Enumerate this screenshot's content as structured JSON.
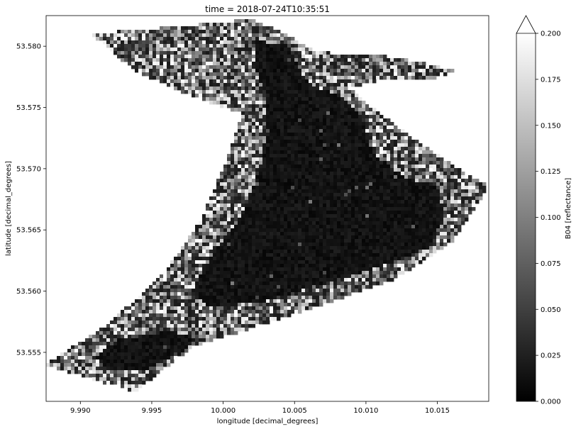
{
  "chart_data": {
    "type": "heatmap",
    "title": "time = 2018-07-24T10:35:51",
    "xlabel": "longitude [decimal_degrees]",
    "ylabel": "latitude [decimal_degrees]",
    "xlim": [
      9.9876,
      10.0186
    ],
    "ylim": [
      53.551,
      53.5825
    ],
    "x_ticks": [
      9.99,
      9.995,
      10.0,
      10.005,
      10.01,
      10.015
    ],
    "x_tick_labels": [
      "9.990",
      "9.995",
      "10.000",
      "10.005",
      "10.010",
      "10.015"
    ],
    "y_ticks": [
      53.555,
      53.56,
      53.565,
      53.57,
      53.575,
      53.58
    ],
    "y_tick_labels": [
      "53.555",
      "53.560",
      "53.565",
      "53.570",
      "53.575",
      "53.580"
    ],
    "colorbar": {
      "label": "B04 [reflectance]",
      "range": [
        0.0,
        0.2
      ],
      "extend": "max",
      "colormap": "gray",
      "ticks": [
        0.0,
        0.025,
        0.05,
        0.075,
        0.1,
        0.125,
        0.15,
        0.175,
        0.2
      ],
      "tick_labels": [
        "0.000",
        "0.025",
        "0.050",
        "0.075",
        "0.100",
        "0.125",
        "0.150",
        "0.175",
        "0.200"
      ]
    },
    "region_outline_lonlat": [
      [
        9.9908,
        53.581
      ],
      [
        9.9975,
        53.5817
      ],
      [
        10.0021,
        53.5822
      ],
      [
        10.0046,
        53.5808
      ],
      [
        10.0066,
        53.5795
      ],
      [
        10.0105,
        53.5793
      ],
      [
        10.0126,
        53.579
      ],
      [
        10.0163,
        53.578
      ],
      [
        10.0147,
        53.5773
      ],
      [
        10.0128,
        53.5772
      ],
      [
        10.0108,
        53.5772
      ],
      [
        10.0088,
        53.5766
      ],
      [
        10.0122,
        53.5734
      ],
      [
        10.0164,
        53.57
      ],
      [
        10.0186,
        53.5686
      ],
      [
        10.016,
        53.564
      ],
      [
        10.012,
        53.561
      ],
      [
        10.0072,
        53.559
      ],
      [
        10.0012,
        53.5567
      ],
      [
        9.9979,
        53.5555
      ],
      [
        9.9938,
        53.5518
      ],
      [
        9.9875,
        53.554
      ],
      [
        9.9921,
        53.5574
      ],
      [
        9.9962,
        53.562
      ],
      [
        9.9985,
        53.566
      ],
      [
        10.0002,
        53.5706
      ],
      [
        10.0013,
        53.5745
      ],
      [
        9.9977,
        53.576
      ],
      [
        9.9938,
        53.578
      ]
    ],
    "water_outline_lonlat": [
      [
        10.0023,
        53.5805
      ],
      [
        10.0046,
        53.58
      ],
      [
        10.0053,
        53.5782
      ],
      [
        10.0062,
        53.5768
      ],
      [
        10.0082,
        53.576
      ],
      [
        10.0098,
        53.574
      ],
      [
        10.0105,
        53.5712
      ],
      [
        10.0128,
        53.5692
      ],
      [
        10.015,
        53.5686
      ],
      [
        10.0155,
        53.566
      ],
      [
        10.0146,
        53.5636
      ],
      [
        10.011,
        53.562
      ],
      [
        10.007,
        53.5606
      ],
      [
        10.003,
        53.5592
      ],
      [
        9.999,
        53.5586
      ],
      [
        9.9978,
        53.56
      ],
      [
        9.9992,
        53.563
      ],
      [
        10.0012,
        53.566
      ],
      [
        10.0026,
        53.57
      ],
      [
        10.0031,
        53.5735
      ],
      [
        10.003,
        53.576
      ],
      [
        10.0021,
        53.5785
      ]
    ],
    "water_lake_lonlat": [
      [
        9.9925,
        53.556
      ],
      [
        9.9965,
        53.5568
      ],
      [
        9.998,
        53.556
      ],
      [
        9.9972,
        53.555
      ],
      [
        9.9945,
        53.5535
      ],
      [
        9.992,
        53.5535
      ],
      [
        9.991,
        53.5545
      ]
    ],
    "land_reflectance_range": [
      0.02,
      0.2
    ],
    "water_reflectance_range": [
      0.005,
      0.025
    ]
  }
}
